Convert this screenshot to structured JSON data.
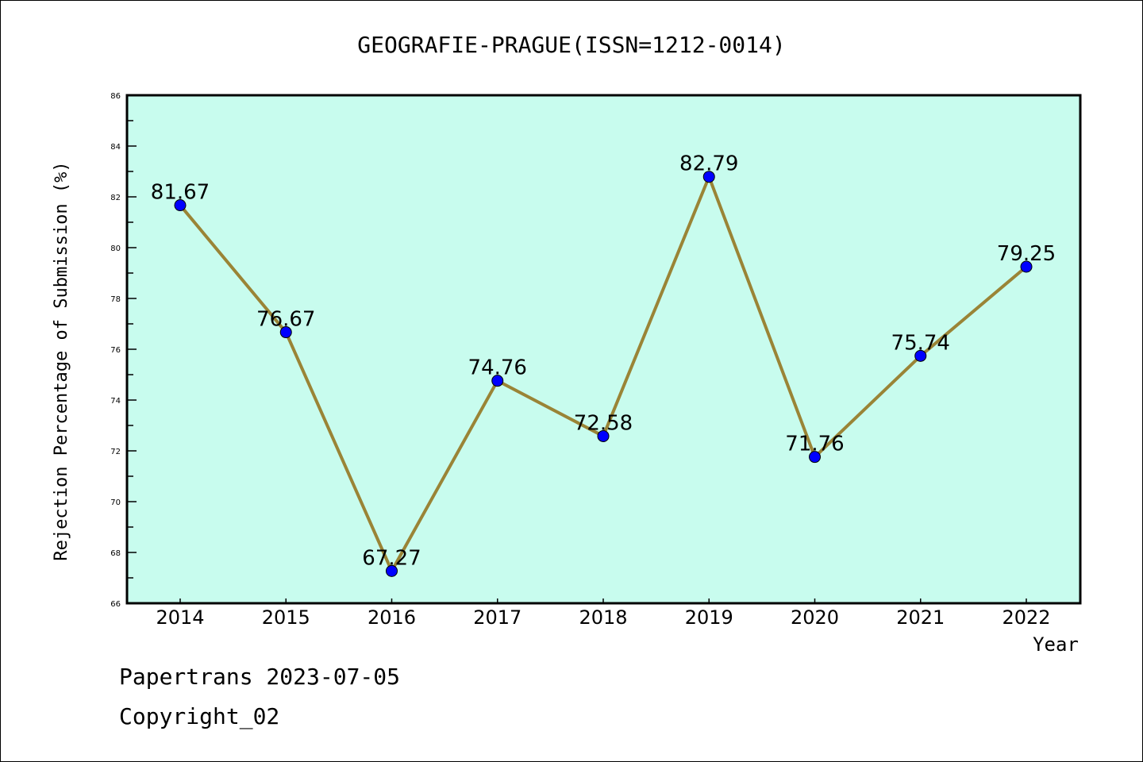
{
  "chart_data": {
    "type": "line",
    "title": "GEOGRAFIE-PRAGUE(ISSN=1212-0014)",
    "xlabel": "Year",
    "ylabel": "Rejection Percentage of Submission (%)",
    "categories": [
      "2014",
      "2015",
      "2016",
      "2017",
      "2018",
      "2019",
      "2020",
      "2021",
      "2022"
    ],
    "values": [
      81.67,
      76.67,
      67.27,
      74.76,
      72.58,
      82.79,
      71.76,
      75.74,
      79.25
    ],
    "data_labels": [
      "81.67",
      "76.67",
      "67.27",
      "74.76",
      "72.58",
      "82.79",
      "71.76",
      "75.74",
      "79.25"
    ],
    "ylim": [
      66,
      86
    ],
    "yticks": [
      "66",
      "68",
      "70",
      "72",
      "74",
      "76",
      "78",
      "80",
      "82",
      "84",
      "86"
    ],
    "grid": false,
    "colors": {
      "plot_bg": "#c8fcee",
      "line": "#9a8436",
      "marker": "#0000ff"
    }
  },
  "footer": {
    "line1": "Papertrans 2023-07-05",
    "line2": "Copyright_02"
  }
}
